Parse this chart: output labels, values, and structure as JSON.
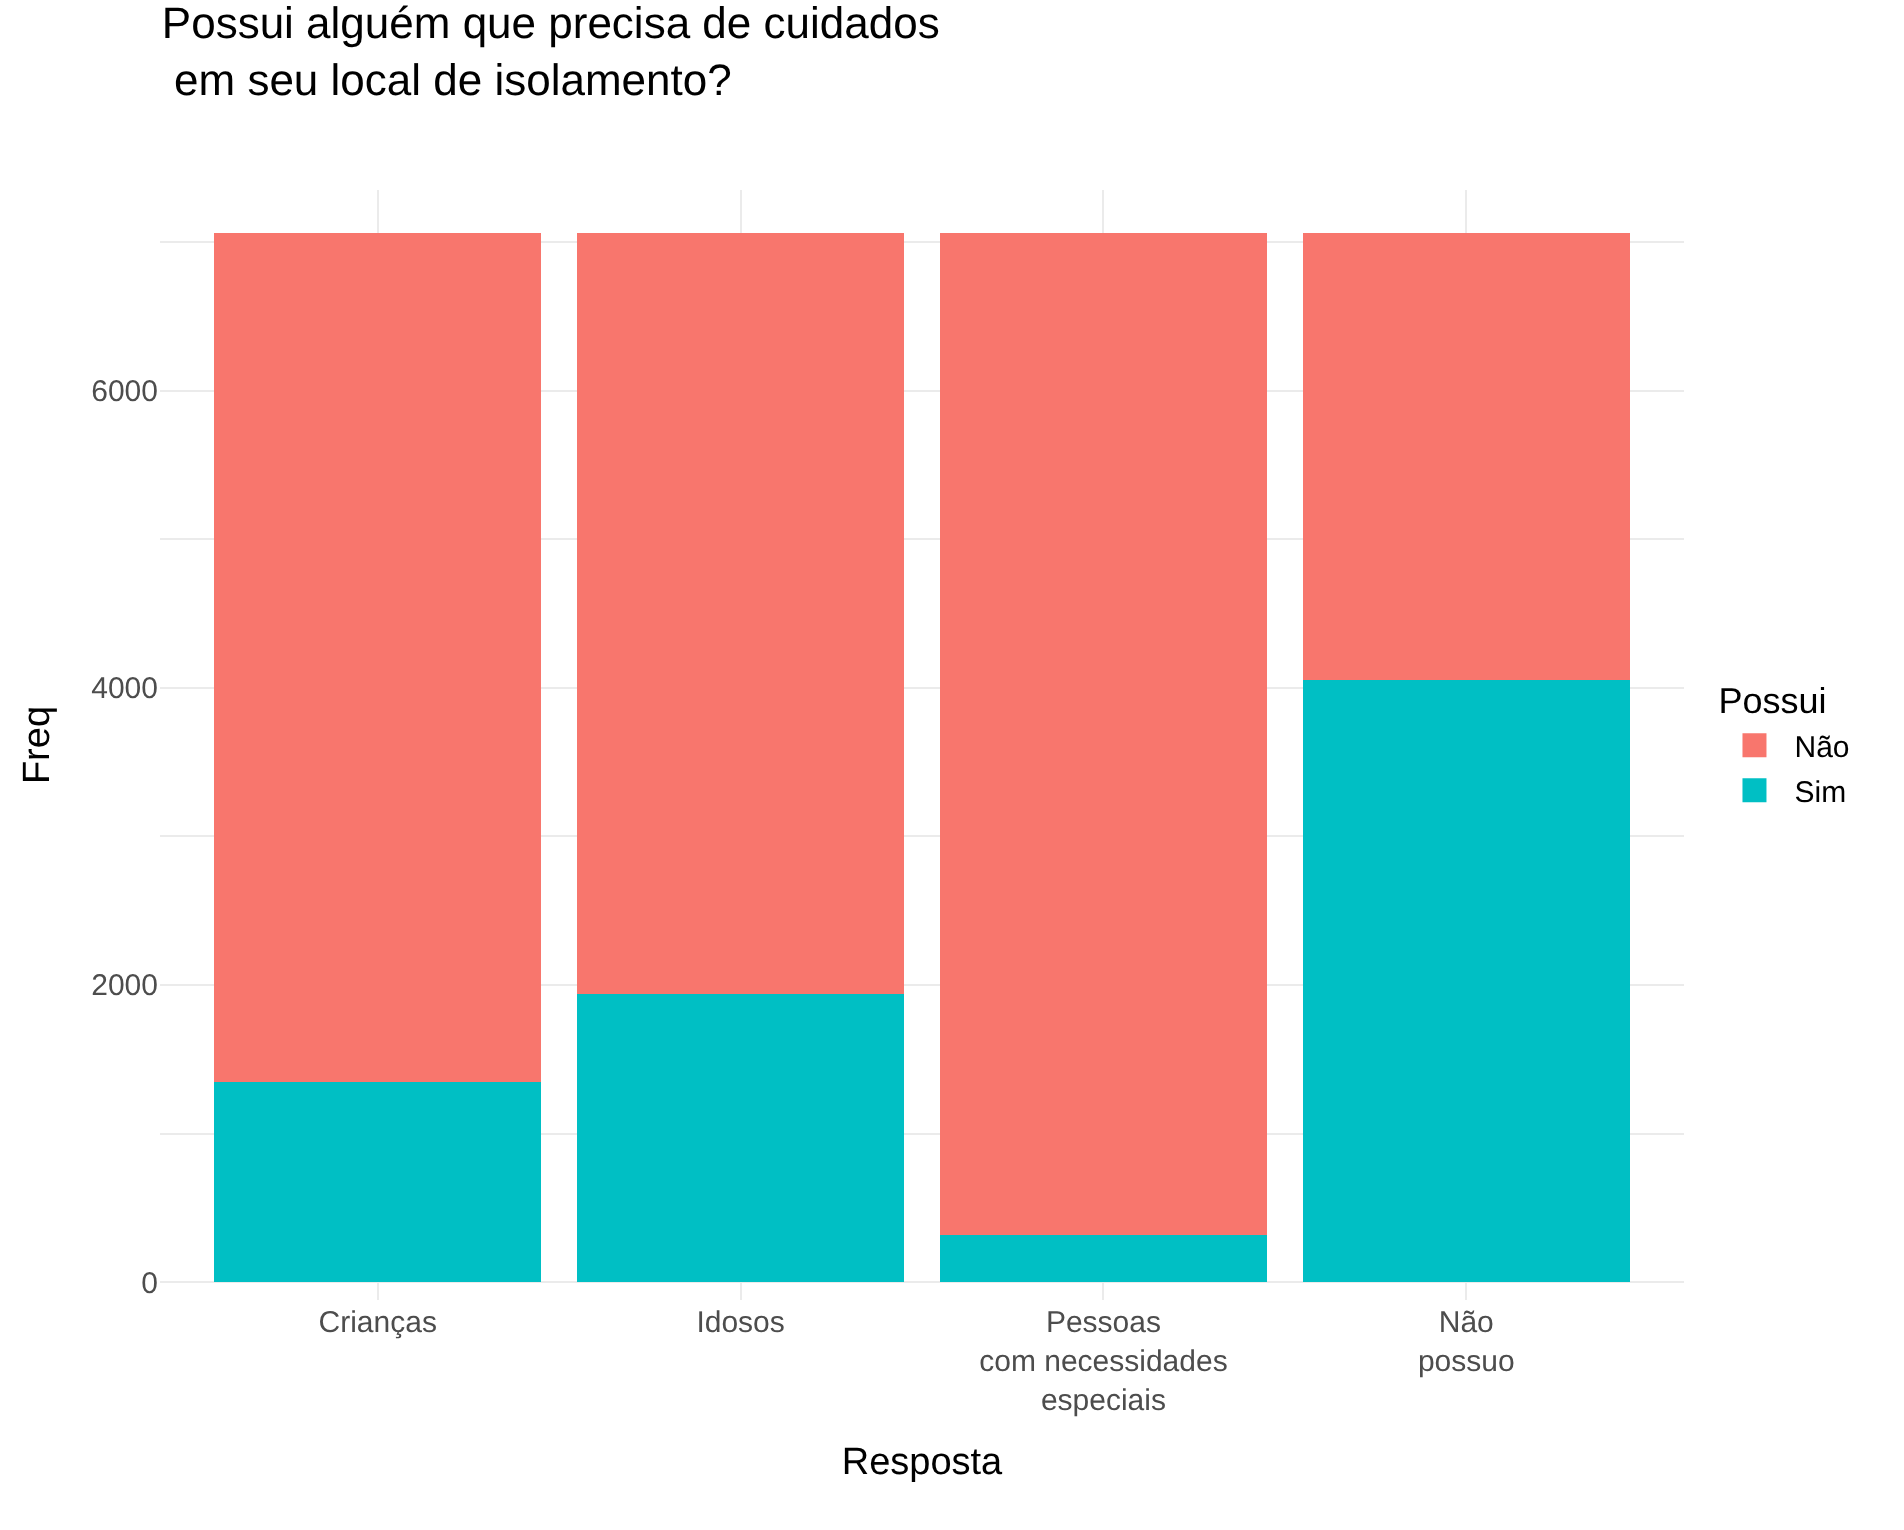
{
  "chart_data": {
    "type": "bar",
    "stacked": true,
    "title": "Possui alguém que precisa de cuidados\n em seu local de isolamento?",
    "xlabel": "Resposta",
    "ylabel": "Freq",
    "legend_title": "Possui",
    "categories": [
      "Crianças",
      "Idosos",
      "Pessoas\ncom necessidades\nespeciais",
      "Não\npossuo"
    ],
    "series": [
      {
        "name": "Sim",
        "color": "#00bfc4",
        "values": [
          1350,
          1940,
          320,
          4050
        ]
      },
      {
        "name": "Não",
        "color": "#f8766d",
        "values": [
          5710,
          5120,
          6740,
          3010
        ]
      }
    ],
    "ylim": [
      -120,
      7350
    ],
    "yticks": [
      0,
      {
        "value": 1000,
        "label": null
      },
      2000,
      {
        "value": 3000,
        "label": null
      },
      4000,
      {
        "value": 5000,
        "label": null
      },
      6000,
      {
        "value": 7000,
        "label": null
      }
    ],
    "grid": true,
    "legend": "right"
  }
}
